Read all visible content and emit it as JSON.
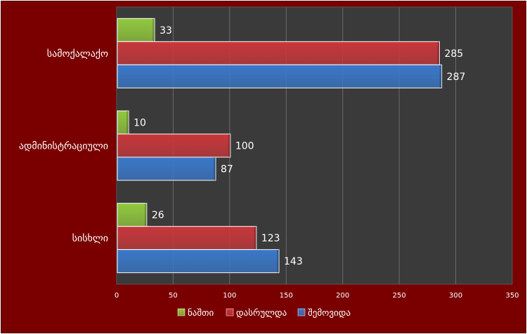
{
  "chart_data": {
    "type": "bar",
    "orientation": "horizontal",
    "categories": [
      "სამოქალაქო",
      "ადმინისტრაციული",
      "სისხლი"
    ],
    "series": [
      {
        "name": "ნაშთი",
        "values": [
          33,
          10,
          26
        ],
        "color": "#92c83e"
      },
      {
        "name": "დასრულდა",
        "values": [
          285,
          100,
          123
        ],
        "color": "#c7373b"
      },
      {
        "name": "შემოვიდა",
        "values": [
          287,
          87,
          143
        ],
        "color": "#3a78c9"
      }
    ],
    "xlim": [
      0,
      350
    ],
    "xticks": [
      0,
      50,
      100,
      150,
      200,
      250,
      300,
      350
    ],
    "grid": true,
    "legend_position": "bottom",
    "colors": {
      "frame": "#7a0000",
      "plot_area": "#3a3a3a",
      "grid": "#6a6a6a",
      "text": "#ffffff"
    }
  }
}
